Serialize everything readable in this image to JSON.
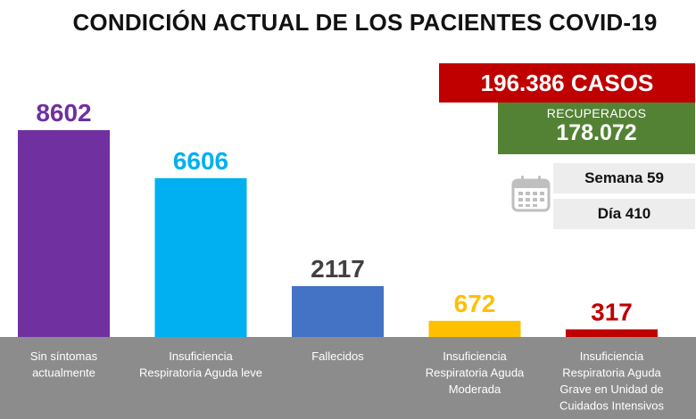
{
  "title": "CONDICIÓN ACTUAL DE LOS PACIENTES COVID-19",
  "summary": {
    "cases": "196.386 CASOS",
    "recovered_label": "RECUPERADOS",
    "recovered_value": "178.072",
    "week": "Semana 59",
    "day": "Día 410",
    "icon": "calendar-icon"
  },
  "colors": {
    "cases_box": "#c00000",
    "recovered_box": "#548235",
    "axis_band": "#8c8c8c"
  },
  "chart_data": {
    "type": "bar",
    "categories": [
      [
        "Sin síntomas",
        "actualmente"
      ],
      [
        "Insuficiencia",
        "Respiratoria Aguda leve"
      ],
      [
        "Fallecidos"
      ],
      [
        "Insuficiencia",
        "Respiratoria Aguda",
        "Moderada"
      ],
      [
        "Insuficiencia",
        "Respiratoria Aguda",
        "Grave en Unidad de",
        "Cuidados Intensivos"
      ]
    ],
    "values": [
      8602,
      6606,
      2117,
      672,
      317
    ],
    "value_labels": [
      "8602",
      "6606",
      "2117",
      "672",
      "317"
    ],
    "bar_colors": [
      "#7030a0",
      "#00b0f0",
      "#4472c4",
      "#ffc000",
      "#c00000"
    ],
    "label_colors": [
      "#7030a0",
      "#00b0f0",
      "#404040",
      "#ffc000",
      "#c00000"
    ],
    "ylim": [
      0,
      8602
    ],
    "grid": false
  }
}
